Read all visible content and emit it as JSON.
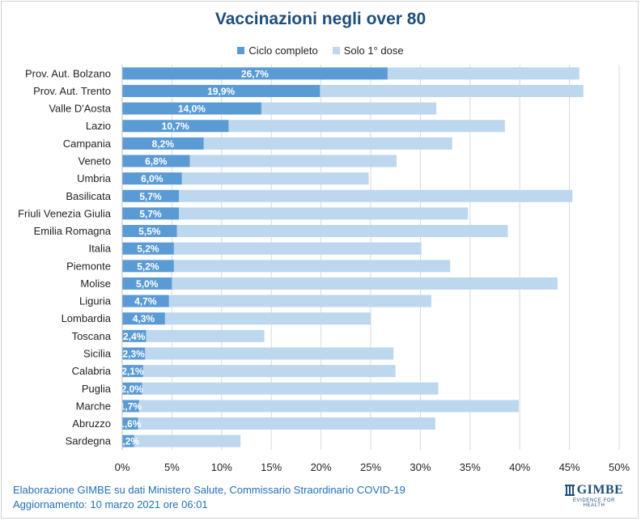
{
  "title": "Vaccinazioni negli over 80",
  "colors": {
    "complete": "#5b9bd5",
    "first_dose": "#bdd7ee",
    "title": "#1f4e79",
    "footer": "#1f6fb8",
    "grid": "#d9d9d9"
  },
  "legend": [
    {
      "label": "Ciclo completo",
      "color": "#5b9bd5"
    },
    {
      "label": "Solo 1° dose",
      "color": "#bdd7ee"
    }
  ],
  "chart_data": {
    "type": "bar",
    "orientation": "horizontal",
    "stacked": true,
    "categories": [
      "Prov. Aut. Bolzano",
      "Prov. Aut. Trento",
      "Valle D'Aosta",
      "Lazio",
      "Campania",
      "Veneto",
      "Umbria",
      "Basilicata",
      "Friuli Venezia Giulia",
      "Emilia Romagna",
      "Italia",
      "Piemonte",
      "Molise",
      "Liguria",
      "Lombardia",
      "Toscana",
      "Sicilia",
      "Calabria",
      "Puglia",
      "Marche",
      "Abruzzo",
      "Sardegna"
    ],
    "series": [
      {
        "name": "Ciclo completo",
        "values": [
          26.7,
          19.9,
          14.0,
          10.7,
          8.2,
          6.8,
          6.0,
          5.7,
          5.7,
          5.5,
          5.2,
          5.2,
          5.0,
          4.7,
          4.3,
          2.4,
          2.3,
          2.1,
          2.0,
          1.7,
          1.6,
          1.2
        ],
        "labels": [
          "26,7%",
          "19,9%",
          "14,0%",
          "10,7%",
          "8,2%",
          "6,8%",
          "6,0%",
          "5,7%",
          "5,7%",
          "5,5%",
          "5,2%",
          "5,2%",
          "5,0%",
          "4,7%",
          "4,3%",
          "2,4%",
          "2,3%",
          "2,1%",
          "2,0%",
          "1,7%",
          "1,6%",
          "1,2%"
        ]
      },
      {
        "name": "Solo 1° dose",
        "values": [
          19.3,
          26.5,
          17.6,
          27.8,
          25.0,
          20.8,
          18.8,
          39.6,
          29.1,
          33.3,
          24.9,
          27.8,
          38.8,
          26.4,
          20.7,
          11.9,
          25.0,
          25.4,
          29.8,
          38.2,
          29.9,
          10.7
        ]
      }
    ],
    "xlim": [
      0,
      50
    ],
    "xticks": [
      "0%",
      "5%",
      "10%",
      "15%",
      "20%",
      "25%",
      "30%",
      "35%",
      "40%",
      "45%",
      "50%"
    ],
    "xtick_values": [
      0,
      5,
      10,
      15,
      20,
      25,
      30,
      35,
      40,
      45,
      50
    ],
    "grid": true
  },
  "footer": {
    "source": "Elaborazione GIMBE su dati Ministero Salute, Commissario Straordinario COVID-19",
    "update": "Aggiornamento: 10 marzo 2021  ore 06:01"
  },
  "logo": {
    "name": "GIMBE",
    "tagline": "EVIDENCE FOR HEALTH"
  }
}
